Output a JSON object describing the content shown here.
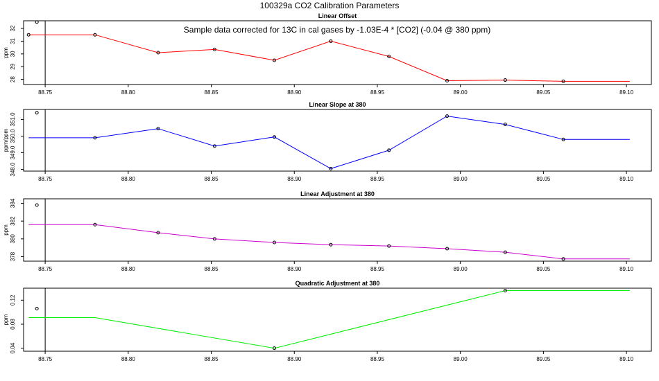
{
  "figure_title": "100329a   CO2 Calibration Parameters",
  "note": "Sample data corrected for 13C in cal gases by -1.03E-4 * [CO2] (-0.04 @ 380 ppm)",
  "chart_data": [
    {
      "type": "line",
      "title": "Linear Offset",
      "xlabel": "",
      "ylabel": "ppm",
      "color": "#ff0000",
      "xlim": [
        88.737,
        89.115
      ],
      "ylim": [
        27.6,
        32.6
      ],
      "x_ticks": [
        "88.75",
        "88.80",
        "88.85",
        "88.90",
        "88.95",
        "89.00",
        "89.05",
        "89.10"
      ],
      "y_ticks": [
        "28",
        "29",
        "30",
        "31",
        "32"
      ],
      "marker_line_x": 88.75,
      "reference_point": {
        "x": 88.745,
        "y": 32.5
      },
      "x": [
        88.74,
        88.78,
        88.818,
        88.852,
        88.888,
        88.922,
        88.957,
        88.992,
        89.027,
        89.062,
        89.102
      ],
      "y": [
        31.5,
        31.5,
        30.1,
        30.35,
        29.5,
        31.0,
        29.8,
        27.9,
        27.95,
        27.85,
        27.85
      ],
      "markers": [
        true,
        true,
        true,
        true,
        true,
        true,
        true,
        true,
        true,
        true,
        false
      ]
    },
    {
      "type": "line",
      "title": "Linear Slope at 380",
      "xlabel": "",
      "ylabel": "ppm/ppm",
      "color": "#0000ff",
      "xlim": [
        88.737,
        89.115
      ],
      "ylim": [
        347.9,
        351.6
      ],
      "x_ticks": [
        "88.75",
        "88.80",
        "88.85",
        "88.90",
        "88.95",
        "89.00",
        "89.05",
        "89.10"
      ],
      "y_ticks": [
        "348.0",
        "349.0",
        "350.0",
        "351.0"
      ],
      "marker_line_x": 88.75,
      "reference_point": {
        "x": 88.745,
        "y": 351.4
      },
      "x": [
        88.74,
        88.78,
        88.818,
        88.852,
        88.888,
        88.922,
        88.957,
        88.992,
        89.027,
        89.062,
        89.102
      ],
      "y": [
        349.9,
        349.9,
        350.45,
        349.4,
        349.95,
        348.05,
        349.15,
        351.2,
        350.7,
        349.8,
        349.8
      ],
      "markers": [
        false,
        true,
        true,
        true,
        true,
        true,
        true,
        true,
        true,
        true,
        false
      ]
    },
    {
      "type": "line",
      "title": "Linear Adjustment at 380",
      "xlabel": "",
      "ylabel": "ppm",
      "color": "#cc00cc",
      "xlim": [
        88.737,
        89.115
      ],
      "ylim": [
        377.5,
        384.5
      ],
      "x_ticks": [
        "88.75",
        "88.80",
        "88.85",
        "88.90",
        "88.95",
        "89.00",
        "89.05",
        "89.10"
      ],
      "y_ticks": [
        "378",
        "380",
        "382",
        "384"
      ],
      "marker_line_x": 88.75,
      "reference_point": {
        "x": 88.745,
        "y": 383.8
      },
      "x": [
        88.74,
        88.78,
        88.818,
        88.852,
        88.888,
        88.922,
        88.957,
        88.992,
        89.027,
        89.062,
        89.102
      ],
      "y": [
        381.6,
        381.6,
        380.7,
        380.0,
        379.6,
        379.35,
        379.2,
        378.9,
        378.5,
        377.75,
        377.75
      ],
      "markers": [
        false,
        true,
        true,
        true,
        true,
        true,
        true,
        true,
        true,
        true,
        false
      ]
    },
    {
      "type": "line",
      "title": "Quadratic Adjustment at 380",
      "xlabel": "",
      "ylabel": "ppm",
      "color": "#00ee00",
      "xlim": [
        88.737,
        89.115
      ],
      "ylim": [
        0.035,
        0.14
      ],
      "x_ticks": [
        "88.75",
        "88.80",
        "88.85",
        "88.90",
        "88.95",
        "89.00",
        "89.05",
        "89.10"
      ],
      "y_ticks": [
        "0.04",
        "0.08",
        "0.12"
      ],
      "marker_line_x": 88.75,
      "reference_point": {
        "x": 88.745,
        "y": 0.106
      },
      "x": [
        88.74,
        88.78,
        88.888,
        89.027,
        89.102
      ],
      "y": [
        0.091,
        0.091,
        0.04,
        0.136,
        0.136
      ],
      "markers": [
        false,
        false,
        true,
        true,
        false
      ]
    }
  ]
}
